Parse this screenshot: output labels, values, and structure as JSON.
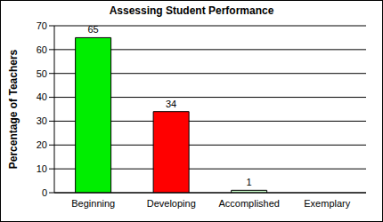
{
  "chart_data": {
    "type": "bar",
    "title": "Assessing Student Performance",
    "y_label": "Percentage of Teachers",
    "categories": [
      "Beginning",
      "Developing",
      "Accomplished",
      "Exemplary"
    ],
    "values": [
      65,
      34,
      1,
      0
    ],
    "colors": [
      "#00ee00",
      "#ff0000",
      "#ccffcc",
      "#ffffcc"
    ],
    "ylim": [
      0,
      70
    ],
    "yticks": [
      0,
      10,
      20,
      30,
      40,
      50,
      60,
      70
    ],
    "grid": true,
    "data_labels": true
  }
}
